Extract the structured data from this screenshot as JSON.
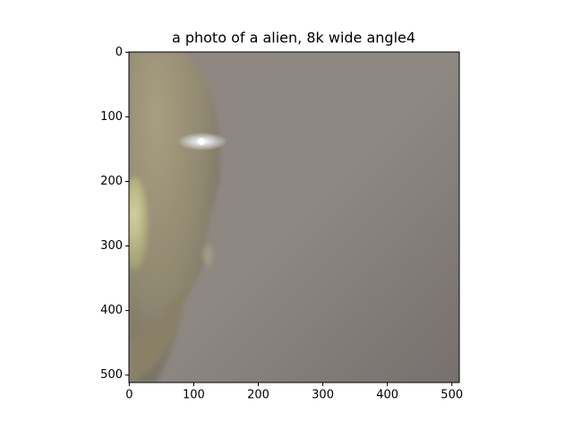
{
  "chart_data": {
    "type": "image",
    "title": "a photo of a alien,  8k wide angle4",
    "xlim": [
      -0.5,
      511.5
    ],
    "ylim": [
      511.5,
      -0.5
    ],
    "xticks": [
      0,
      100,
      200,
      300,
      400,
      500
    ],
    "yticks": [
      0,
      100,
      200,
      300,
      400,
      500
    ]
  }
}
